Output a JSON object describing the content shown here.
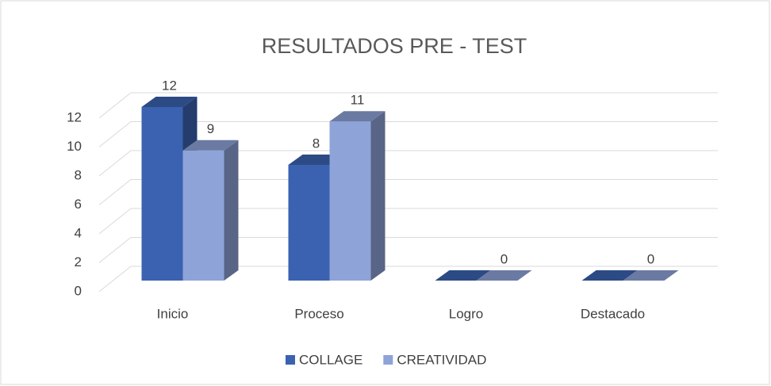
{
  "chart_data": {
    "type": "bar3d",
    "title": "RESULTADOS PRE - TEST",
    "categories": [
      "Inicio",
      "Proceso",
      "Logro",
      "Destacado"
    ],
    "series": [
      {
        "name": "COLLAGE",
        "color": "#3a62b0",
        "values": [
          12,
          8,
          0,
          0
        ],
        "value_labels": [
          "12",
          "8",
          null,
          null
        ]
      },
      {
        "name": "CREATIVIDAD",
        "color": "#8ea3d8",
        "values": [
          9,
          11,
          0,
          0
        ],
        "value_labels": [
          "9",
          "11",
          "0",
          "0"
        ]
      }
    ],
    "ylim": [
      0,
      12
    ],
    "yticks": [
      0,
      2,
      4,
      6,
      8,
      10,
      12
    ],
    "grid": true,
    "legend": "bottom"
  }
}
